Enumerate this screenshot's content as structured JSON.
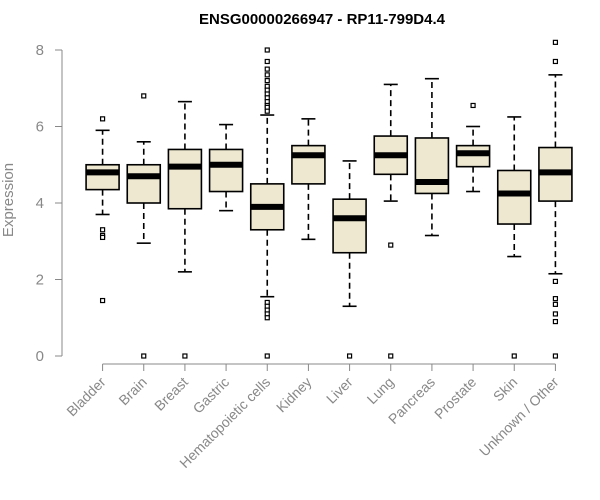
{
  "chart_data": {
    "type": "boxplot",
    "title": "ENSG00000266947 - RP11-799D4.4",
    "xlabel": "",
    "ylabel": "Expression",
    "ylim": [
      0,
      8
    ],
    "yticks": [
      0,
      2,
      4,
      6,
      8
    ],
    "box_color": "#EEE8D0",
    "categories": [
      "Bladder",
      "Brain",
      "Breast",
      "Gastric",
      "Hematopoietic cells",
      "Kidney",
      "Liver",
      "Lung",
      "Pancreas",
      "Prostate",
      "Skin",
      "Unknown / Other"
    ],
    "boxes": [
      {
        "name": "Bladder",
        "min": 3.7,
        "q1": 4.35,
        "median": 4.8,
        "q3": 5.0,
        "max": 5.9,
        "outliers": [
          6.2,
          3.3,
          3.15,
          3.1,
          1.45
        ]
      },
      {
        "name": "Brain",
        "min": 2.95,
        "q1": 4.0,
        "median": 4.7,
        "q3": 5.0,
        "max": 5.6,
        "outliers": [
          6.8,
          0.0
        ]
      },
      {
        "name": "Breast",
        "min": 2.2,
        "q1": 3.85,
        "median": 4.95,
        "q3": 5.4,
        "max": 6.65,
        "outliers": [
          0.0
        ]
      },
      {
        "name": "Gastric",
        "min": 3.8,
        "q1": 4.3,
        "median": 5.0,
        "q3": 5.4,
        "max": 6.05,
        "outliers": []
      },
      {
        "name": "Hematopoietic cells",
        "min": 1.55,
        "q1": 3.3,
        "median": 3.9,
        "q3": 4.5,
        "max": 6.3,
        "outliers": [
          8.0,
          7.7,
          7.5,
          7.35,
          7.2,
          7.05,
          6.95,
          6.85,
          6.75,
          6.65,
          6.55,
          6.5,
          6.4,
          1.4,
          1.3,
          1.2,
          1.1,
          1.0,
          0.0
        ]
      },
      {
        "name": "Kidney",
        "min": 3.05,
        "q1": 4.5,
        "median": 5.25,
        "q3": 5.5,
        "max": 6.2,
        "outliers": []
      },
      {
        "name": "Liver",
        "min": 1.3,
        "q1": 2.7,
        "median": 3.6,
        "q3": 4.1,
        "max": 5.1,
        "outliers": [
          0.0
        ]
      },
      {
        "name": "Lung",
        "min": 4.05,
        "q1": 4.75,
        "median": 5.25,
        "q3": 5.75,
        "max": 7.1,
        "outliers": [
          2.9,
          0.0
        ]
      },
      {
        "name": "Pancreas",
        "min": 3.15,
        "q1": 4.25,
        "median": 4.55,
        "q3": 5.7,
        "max": 7.25,
        "outliers": []
      },
      {
        "name": "Prostate",
        "min": 4.3,
        "q1": 4.95,
        "median": 5.3,
        "q3": 5.5,
        "max": 6.0,
        "outliers": [
          6.55
        ]
      },
      {
        "name": "Skin",
        "min": 2.6,
        "q1": 3.45,
        "median": 4.25,
        "q3": 4.85,
        "max": 6.25,
        "outliers": [
          0.0
        ]
      },
      {
        "name": "Unknown / Other",
        "min": 2.15,
        "q1": 4.05,
        "median": 4.8,
        "q3": 5.45,
        "max": 7.35,
        "outliers": [
          8.2,
          7.7,
          1.95,
          1.5,
          1.35,
          1.1,
          0.9,
          0.0
        ]
      }
    ]
  }
}
